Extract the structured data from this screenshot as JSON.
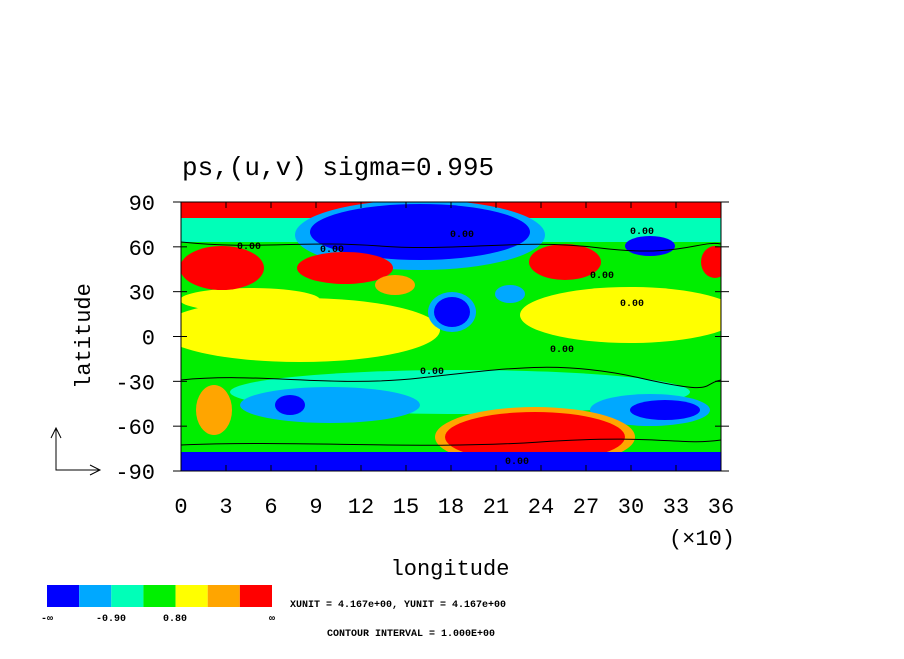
{
  "chart_data": {
    "type": "contour",
    "title": "ps,(u,v)  sigma=0.995",
    "xlabel": "longitude",
    "ylabel": "latitude",
    "x_multiplier": "(×10)",
    "xlim": [
      0,
      36
    ],
    "xticks": [
      0,
      3,
      6,
      9,
      12,
      15,
      18,
      21,
      24,
      27,
      30,
      33,
      36
    ],
    "ylim": [
      -90,
      90
    ],
    "yticks": [
      -90,
      -60,
      -30,
      0,
      30,
      60,
      90
    ],
    "contour_labels": [
      "0.00",
      "0.00",
      "0.00",
      "0.00",
      "0.00",
      "0.00",
      "0.00",
      "0.00",
      "0.00"
    ],
    "colorbar": {
      "colors": [
        "#0000ff",
        "#00a8ff",
        "#00ffb8",
        "#00f000",
        "#ffff00",
        "#ffa500",
        "#ff0000"
      ],
      "labels": [
        "-∞",
        "-0.90",
        "0.80",
        "∞"
      ]
    },
    "unit_note": "XUNIT = 4.167e+00, YUNIT = 4.167e+00",
    "contour_interval": "CONTOUR INTERVAL = 1.000E+00"
  }
}
